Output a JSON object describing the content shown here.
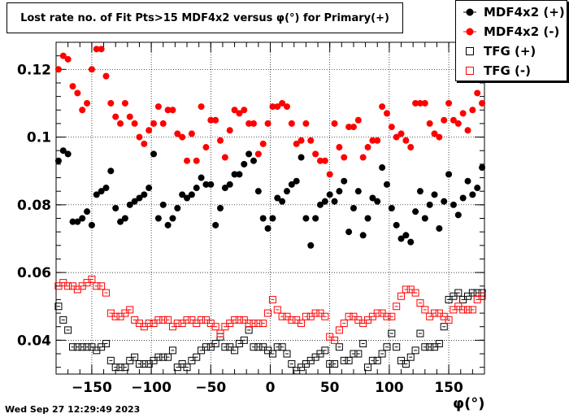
{
  "chart_data": {
    "type": "scatter",
    "title": "Lost rate no. of Fit Pts>15 MDF4x2 versus φ(°) for Primary(+)",
    "xlabel": "φ(°)",
    "ylabel": "",
    "xlim": [
      -180,
      180
    ],
    "ylim": [
      0.03,
      0.128
    ],
    "xticks": [
      "−150",
      "−100",
      "−50",
      "0",
      "50",
      "100",
      "150"
    ],
    "xtick_values": [
      -150,
      -100,
      -50,
      0,
      50,
      100,
      150
    ],
    "yticks": [
      "0.04",
      "0.06",
      "0.08",
      "0.1",
      "0.12"
    ],
    "ytick_values": [
      0.04,
      0.06,
      0.08,
      0.1,
      0.12
    ],
    "grid": true,
    "legend_position": "top-right",
    "timestamp": "Wed Sep 27 12:29:49 2023",
    "series": [
      {
        "name": "MDF4x2 (+)",
        "marker": "filled-circle",
        "color": "#000000",
        "x": [
          -178,
          -174,
          -170,
          -166,
          -162,
          -158,
          -154,
          -150,
          -146,
          -142,
          -138,
          -134,
          -130,
          -126,
          -122,
          -118,
          -114,
          -110,
          -106,
          -102,
          -98,
          -94,
          -90,
          -86,
          -82,
          -78,
          -74,
          -70,
          -66,
          -62,
          -58,
          -54,
          -50,
          -46,
          -42,
          -38,
          -34,
          -30,
          -26,
          -22,
          -18,
          -14,
          -10,
          -6,
          -2,
          2,
          6,
          10,
          14,
          18,
          22,
          26,
          30,
          34,
          38,
          42,
          46,
          50,
          54,
          58,
          62,
          66,
          70,
          74,
          78,
          82,
          86,
          90,
          94,
          98,
          102,
          106,
          110,
          114,
          118,
          122,
          126,
          130,
          134,
          138,
          142,
          146,
          150,
          154,
          158,
          162,
          166,
          170,
          174,
          178
        ],
        "y": [
          0.093,
          0.096,
          0.095,
          0.075,
          0.075,
          0.076,
          0.078,
          0.074,
          0.083,
          0.084,
          0.085,
          0.09,
          0.079,
          0.075,
          0.076,
          0.08,
          0.081,
          0.082,
          0.083,
          0.085,
          0.095,
          0.076,
          0.08,
          0.074,
          0.076,
          0.079,
          0.083,
          0.082,
          0.083,
          0.085,
          0.088,
          0.086,
          0.086,
          0.074,
          0.079,
          0.085,
          0.086,
          0.089,
          0.089,
          0.092,
          0.095,
          0.093,
          0.084,
          0.076,
          0.073,
          0.076,
          0.082,
          0.081,
          0.084,
          0.086,
          0.087,
          0.094,
          0.076,
          0.068,
          0.076,
          0.08,
          0.081,
          0.083,
          0.081,
          0.084,
          0.087,
          0.072,
          0.079,
          0.084,
          0.071,
          0.076,
          0.082,
          0.081,
          0.091,
          0.086,
          0.079,
          0.074,
          0.07,
          0.071,
          0.069,
          0.078,
          0.084,
          0.076,
          0.08,
          0.083,
          0.073,
          0.081,
          0.089,
          0.08,
          0.077,
          0.082,
          0.087,
          0.083,
          0.085,
          0.091
        ]
      },
      {
        "name": "MDF4x2 (-)",
        "marker": "filled-circle",
        "color": "#ff0000",
        "x": [
          -178,
          -174,
          -170,
          -166,
          -162,
          -158,
          -154,
          -150,
          -146,
          -142,
          -138,
          -134,
          -130,
          -126,
          -122,
          -118,
          -114,
          -110,
          -106,
          -102,
          -98,
          -94,
          -90,
          -86,
          -82,
          -78,
          -74,
          -70,
          -66,
          -62,
          -58,
          -54,
          -50,
          -46,
          -42,
          -38,
          -34,
          -30,
          -26,
          -22,
          -18,
          -14,
          -10,
          -6,
          -2,
          2,
          6,
          10,
          14,
          18,
          22,
          26,
          30,
          34,
          38,
          42,
          46,
          50,
          54,
          58,
          62,
          66,
          70,
          74,
          78,
          82,
          86,
          90,
          94,
          98,
          102,
          106,
          110,
          114,
          118,
          122,
          126,
          130,
          134,
          138,
          142,
          146,
          150,
          154,
          158,
          162,
          166,
          170,
          174,
          178
        ],
        "y": [
          0.12,
          0.124,
          0.123,
          0.115,
          0.113,
          0.108,
          0.11,
          0.12,
          0.126,
          0.126,
          0.118,
          0.11,
          0.106,
          0.104,
          0.11,
          0.106,
          0.104,
          0.1,
          0.098,
          0.102,
          0.104,
          0.109,
          0.104,
          0.108,
          0.108,
          0.101,
          0.1,
          0.093,
          0.101,
          0.093,
          0.109,
          0.097,
          0.105,
          0.105,
          0.099,
          0.094,
          0.102,
          0.108,
          0.107,
          0.108,
          0.104,
          0.104,
          0.095,
          0.098,
          0.104,
          0.109,
          0.109,
          0.11,
          0.109,
          0.104,
          0.098,
          0.099,
          0.104,
          0.099,
          0.095,
          0.093,
          0.093,
          0.089,
          0.104,
          0.097,
          0.094,
          0.103,
          0.103,
          0.105,
          0.094,
          0.097,
          0.099,
          0.099,
          0.109,
          0.107,
          0.103,
          0.1,
          0.101,
          0.099,
          0.097,
          0.11,
          0.11,
          0.11,
          0.104,
          0.101,
          0.1,
          0.105,
          0.11,
          0.105,
          0.104,
          0.107,
          0.102,
          0.108,
          0.113,
          0.11
        ]
      },
      {
        "name": "TFG (+)",
        "marker": "open-square",
        "color": "#000000",
        "x": [
          -178,
          -174,
          -170,
          -166,
          -162,
          -158,
          -154,
          -150,
          -146,
          -142,
          -138,
          -134,
          -130,
          -126,
          -122,
          -118,
          -114,
          -110,
          -106,
          -102,
          -98,
          -94,
          -90,
          -86,
          -82,
          -78,
          -74,
          -70,
          -66,
          -62,
          -58,
          -54,
          -50,
          -46,
          -42,
          -38,
          -34,
          -30,
          -26,
          -22,
          -18,
          -14,
          -10,
          -6,
          -2,
          2,
          6,
          10,
          14,
          18,
          22,
          26,
          30,
          34,
          38,
          42,
          46,
          50,
          54,
          58,
          62,
          66,
          70,
          74,
          78,
          82,
          86,
          90,
          94,
          98,
          102,
          106,
          110,
          114,
          118,
          122,
          126,
          130,
          134,
          138,
          142,
          146,
          150,
          154,
          158,
          162,
          166,
          170,
          174,
          178
        ],
        "y": [
          0.05,
          0.046,
          0.043,
          0.038,
          0.038,
          0.038,
          0.038,
          0.038,
          0.037,
          0.038,
          0.039,
          0.034,
          0.032,
          0.032,
          0.032,
          0.034,
          0.035,
          0.033,
          0.033,
          0.033,
          0.034,
          0.035,
          0.035,
          0.035,
          0.037,
          0.032,
          0.033,
          0.032,
          0.034,
          0.035,
          0.037,
          0.038,
          0.038,
          0.039,
          0.041,
          0.038,
          0.038,
          0.037,
          0.039,
          0.04,
          0.043,
          0.038,
          0.038,
          0.038,
          0.037,
          0.036,
          0.038,
          0.038,
          0.036,
          0.033,
          0.031,
          0.032,
          0.033,
          0.034,
          0.035,
          0.036,
          0.037,
          0.033,
          0.033,
          0.038,
          0.034,
          0.034,
          0.036,
          0.036,
          0.039,
          0.032,
          0.034,
          0.034,
          0.036,
          0.038,
          0.042,
          0.038,
          0.034,
          0.033,
          0.035,
          0.037,
          0.042,
          0.038,
          0.038,
          0.038,
          0.039,
          0.044,
          0.052,
          0.053,
          0.054,
          0.052,
          0.053,
          0.054,
          0.054,
          0.054
        ]
      },
      {
        "name": "TFG (-)",
        "marker": "open-square",
        "color": "#ff0000",
        "x": [
          -178,
          -174,
          -170,
          -166,
          -162,
          -158,
          -154,
          -150,
          -146,
          -142,
          -138,
          -134,
          -130,
          -126,
          -122,
          -118,
          -114,
          -110,
          -106,
          -102,
          -98,
          -94,
          -90,
          -86,
          -82,
          -78,
          -74,
          -70,
          -66,
          -62,
          -58,
          -54,
          -50,
          -46,
          -42,
          -38,
          -34,
          -30,
          -26,
          -22,
          -18,
          -14,
          -10,
          -6,
          -2,
          2,
          6,
          10,
          14,
          18,
          22,
          26,
          30,
          34,
          38,
          42,
          46,
          50,
          54,
          58,
          62,
          66,
          70,
          74,
          78,
          82,
          86,
          90,
          94,
          98,
          102,
          106,
          110,
          114,
          118,
          122,
          126,
          130,
          134,
          138,
          142,
          146,
          150,
          154,
          158,
          162,
          166,
          170,
          174,
          178
        ],
        "y": [
          0.056,
          0.057,
          0.056,
          0.056,
          0.055,
          0.056,
          0.057,
          0.058,
          0.056,
          0.056,
          0.054,
          0.048,
          0.047,
          0.047,
          0.048,
          0.049,
          0.046,
          0.045,
          0.044,
          0.045,
          0.045,
          0.046,
          0.046,
          0.046,
          0.044,
          0.045,
          0.045,
          0.046,
          0.046,
          0.045,
          0.046,
          0.046,
          0.045,
          0.044,
          0.042,
          0.044,
          0.045,
          0.046,
          0.046,
          0.046,
          0.045,
          0.045,
          0.045,
          0.045,
          0.048,
          0.052,
          0.049,
          0.047,
          0.047,
          0.046,
          0.046,
          0.045,
          0.047,
          0.047,
          0.048,
          0.048,
          0.047,
          0.041,
          0.04,
          0.043,
          0.045,
          0.047,
          0.047,
          0.046,
          0.045,
          0.046,
          0.047,
          0.048,
          0.048,
          0.047,
          0.047,
          0.05,
          0.053,
          0.055,
          0.055,
          0.054,
          0.051,
          0.049,
          0.047,
          0.048,
          0.048,
          0.047,
          0.046,
          0.049,
          0.05,
          0.049,
          0.049,
          0.049,
          0.052,
          0.053
        ]
      }
    ]
  }
}
